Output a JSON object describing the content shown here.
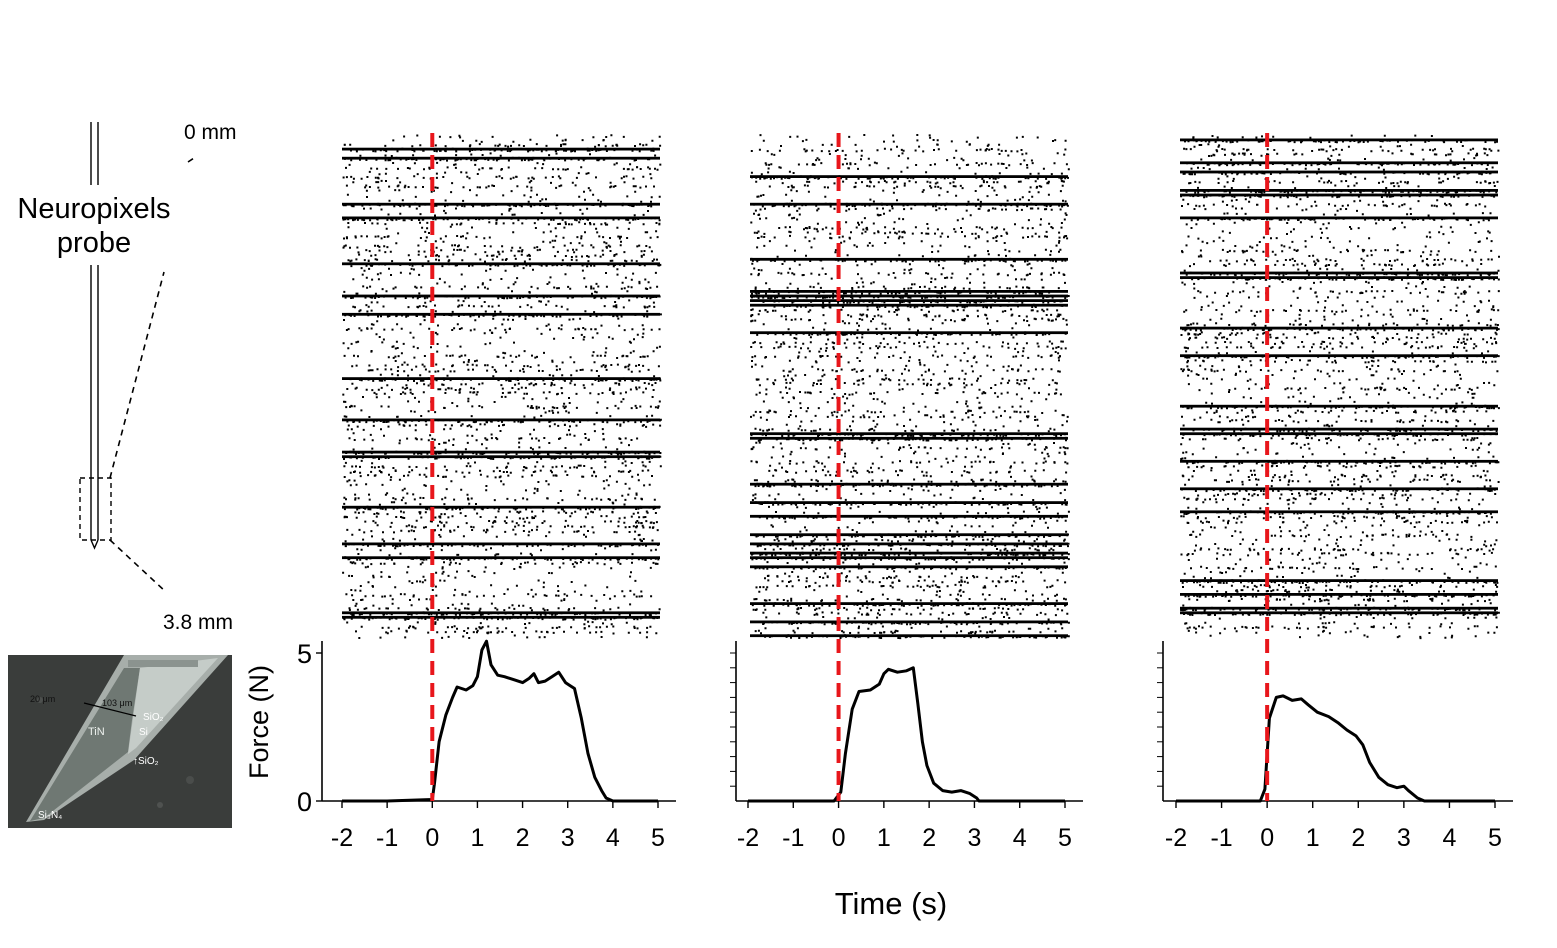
{
  "probe": {
    "title_line1": "Neuropixels",
    "title_line2": "probe",
    "depth_top": "0 mm",
    "depth_bottom": "3.8 mm"
  },
  "micrograph": {
    "labels": {
      "dim_20": "20 μm",
      "dim_103": "103 μm",
      "tin": "TiN",
      "sio2_top": "SiO₂",
      "si": "Si",
      "sio2_bottom": "↑SiO₂",
      "si3n4": "Si₃N₄"
    }
  },
  "colors": {
    "raster": "#000000",
    "onset_line": "#e8161b",
    "force_trace": "#000000",
    "micrograph_bg": "#3a3d3b"
  },
  "chart_data": [
    {
      "type": "line",
      "panel": "trial-1",
      "xlabel": "Time (s)",
      "ylabel": "Force (N)",
      "xlim": [
        -2,
        5
      ],
      "ylim": [
        0,
        5.5
      ],
      "x_ticks": [
        "-2",
        "-1",
        "0",
        "1",
        "2",
        "3",
        "4",
        "5"
      ],
      "y_ticks": [
        "0",
        "5"
      ],
      "onset_x": 0,
      "raster_rows": 110,
      "x": [
        -2.0,
        -1.0,
        0.0,
        0.05,
        0.15,
        0.3,
        0.45,
        0.55,
        0.75,
        0.9,
        1.0,
        1.1,
        1.2,
        1.3,
        1.45,
        1.6,
        1.8,
        2.0,
        2.15,
        2.25,
        2.35,
        2.5,
        2.65,
        2.8,
        2.95,
        3.05,
        3.15,
        3.3,
        3.45,
        3.6,
        3.75,
        3.85,
        4.0,
        5.0
      ],
      "y": [
        0.0,
        0.0,
        0.05,
        0.6,
        2.0,
        2.9,
        3.5,
        3.85,
        3.75,
        3.9,
        4.2,
        5.1,
        5.4,
        4.6,
        4.25,
        4.2,
        4.1,
        4.0,
        4.15,
        4.3,
        4.0,
        4.05,
        4.2,
        4.35,
        4.0,
        3.9,
        3.8,
        2.8,
        1.6,
        0.8,
        0.35,
        0.1,
        0.0,
        0.0
      ]
    },
    {
      "type": "line",
      "panel": "trial-2",
      "xlim": [
        -2,
        5
      ],
      "ylim": [
        0,
        5.5
      ],
      "x_ticks": [
        "-2",
        "-1",
        "0",
        "1",
        "2",
        "3",
        "4",
        "5"
      ],
      "onset_x": 0,
      "raster_rows": 110,
      "x": [
        -2.0,
        -0.1,
        0.05,
        0.15,
        0.3,
        0.45,
        0.7,
        0.9,
        1.0,
        1.1,
        1.3,
        1.5,
        1.65,
        1.75,
        1.85,
        1.95,
        2.1,
        2.3,
        2.5,
        2.7,
        2.9,
        3.05,
        3.1,
        5.0
      ],
      "y": [
        0.0,
        0.0,
        0.3,
        1.6,
        3.1,
        3.7,
        3.75,
        3.95,
        4.3,
        4.45,
        4.35,
        4.4,
        4.5,
        3.3,
        2.0,
        1.2,
        0.6,
        0.35,
        0.3,
        0.35,
        0.25,
        0.1,
        0.0,
        0.0
      ]
    },
    {
      "type": "line",
      "panel": "trial-3",
      "xlim": [
        -2,
        5
      ],
      "ylim": [
        0,
        5.5
      ],
      "x_ticks": [
        "-2",
        "-1",
        "0",
        "1",
        "2",
        "3",
        "4",
        "5"
      ],
      "onset_x": 0,
      "raster_rows": 110,
      "x": [
        -2.0,
        -0.15,
        -0.05,
        0.05,
        0.2,
        0.35,
        0.55,
        0.75,
        0.9,
        1.1,
        1.35,
        1.55,
        1.75,
        1.95,
        2.1,
        2.25,
        2.45,
        2.65,
        2.85,
        3.0,
        3.1,
        3.3,
        3.45,
        5.0
      ],
      "y": [
        0.0,
        0.0,
        0.4,
        2.8,
        3.5,
        3.55,
        3.4,
        3.45,
        3.25,
        3.0,
        2.85,
        2.65,
        2.4,
        2.2,
        1.9,
        1.3,
        0.8,
        0.55,
        0.45,
        0.5,
        0.35,
        0.1,
        0.0,
        0.0
      ]
    }
  ]
}
